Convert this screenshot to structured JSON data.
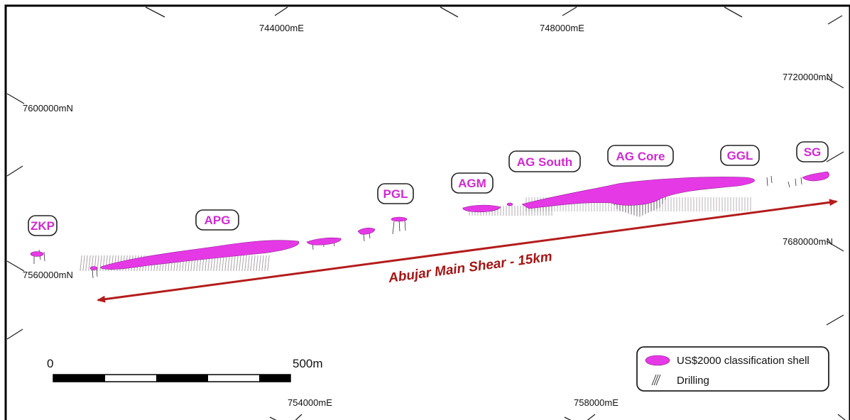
{
  "grid": {
    "easting_top": [
      "744000mE",
      "748000mE"
    ],
    "easting_bottom": [
      "754000mE",
      "758000mE"
    ],
    "northing_left": [
      "7600000mN",
      "7560000mN"
    ],
    "northing_right": [
      "7720000mN",
      "7680000mN"
    ]
  },
  "deposits": [
    "ZKP",
    "APG",
    "PGL",
    "AGM",
    "AG South",
    "AG Core",
    "GGL",
    "SG"
  ],
  "shear": {
    "label": "Abujar Main Shear - 15km"
  },
  "scale_bar": {
    "start": "0",
    "end": "500m"
  },
  "legend": {
    "shell_label": "US$2000 classification shell",
    "drilling_label": "Drilling",
    "shell_color": "#e639e6",
    "shear_color": "#b41c1c"
  }
}
